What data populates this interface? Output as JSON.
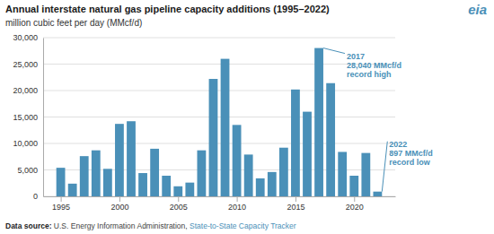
{
  "chart_data": {
    "type": "bar",
    "title": "Annual interstate natural gas pipeline capacity additions (1995–2022)",
    "subtitle": "million cubic feet per day (MMcf/d)",
    "x": [
      1995,
      1996,
      1997,
      1998,
      1999,
      2000,
      2001,
      2002,
      2003,
      2004,
      2005,
      2006,
      2007,
      2008,
      2009,
      2010,
      2011,
      2012,
      2013,
      2014,
      2015,
      2016,
      2017,
      2018,
      2019,
      2020,
      2021,
      2022
    ],
    "values": [
      5400,
      2400,
      7600,
      8700,
      5200,
      13700,
      14200,
      4400,
      9000,
      3900,
      1900,
      2600,
      8700,
      22200,
      26000,
      13500,
      7900,
      3400,
      4600,
      9200,
      20200,
      16000,
      28040,
      21400,
      8400,
      3900,
      8200,
      897
    ],
    "color": "#4a90b8",
    "xlim": [
      1993.5,
      2023.5
    ],
    "xticks": [
      1995,
      2000,
      2005,
      2010,
      2015,
      2020
    ],
    "ylim": [
      0,
      30000
    ],
    "yticks": [
      0,
      {
        "value": 5000,
        "label": "5,000"
      },
      {
        "value": 10000,
        "label": "10,000"
      },
      {
        "value": 15000,
        "label": "15,000"
      },
      {
        "value": 20000,
        "label": "20,000"
      },
      {
        "value": 25000,
        "label": "25,000"
      },
      {
        "value": 30000,
        "label": "30,000"
      }
    ],
    "grid": true,
    "annotations": [
      {
        "text": [
          "2017",
          "28,040 MMcf/d",
          "record high"
        ],
        "x": 2017,
        "y": 28040,
        "color": "#4a90b8"
      },
      {
        "text": [
          "2022",
          "897 MMcf/d",
          "record low"
        ],
        "x": 2022,
        "y": 897,
        "color": "#4a90b8"
      }
    ],
    "logo": {
      "text": "eia",
      "color": "#4a90b8"
    },
    "source": [
      {
        "text": "Data source: "
      },
      {
        "text": "U.S. Energy Information Administration, "
      },
      {
        "text": "State-to-State Capacity Tracker",
        "color": "#4a90b8"
      }
    ]
  }
}
